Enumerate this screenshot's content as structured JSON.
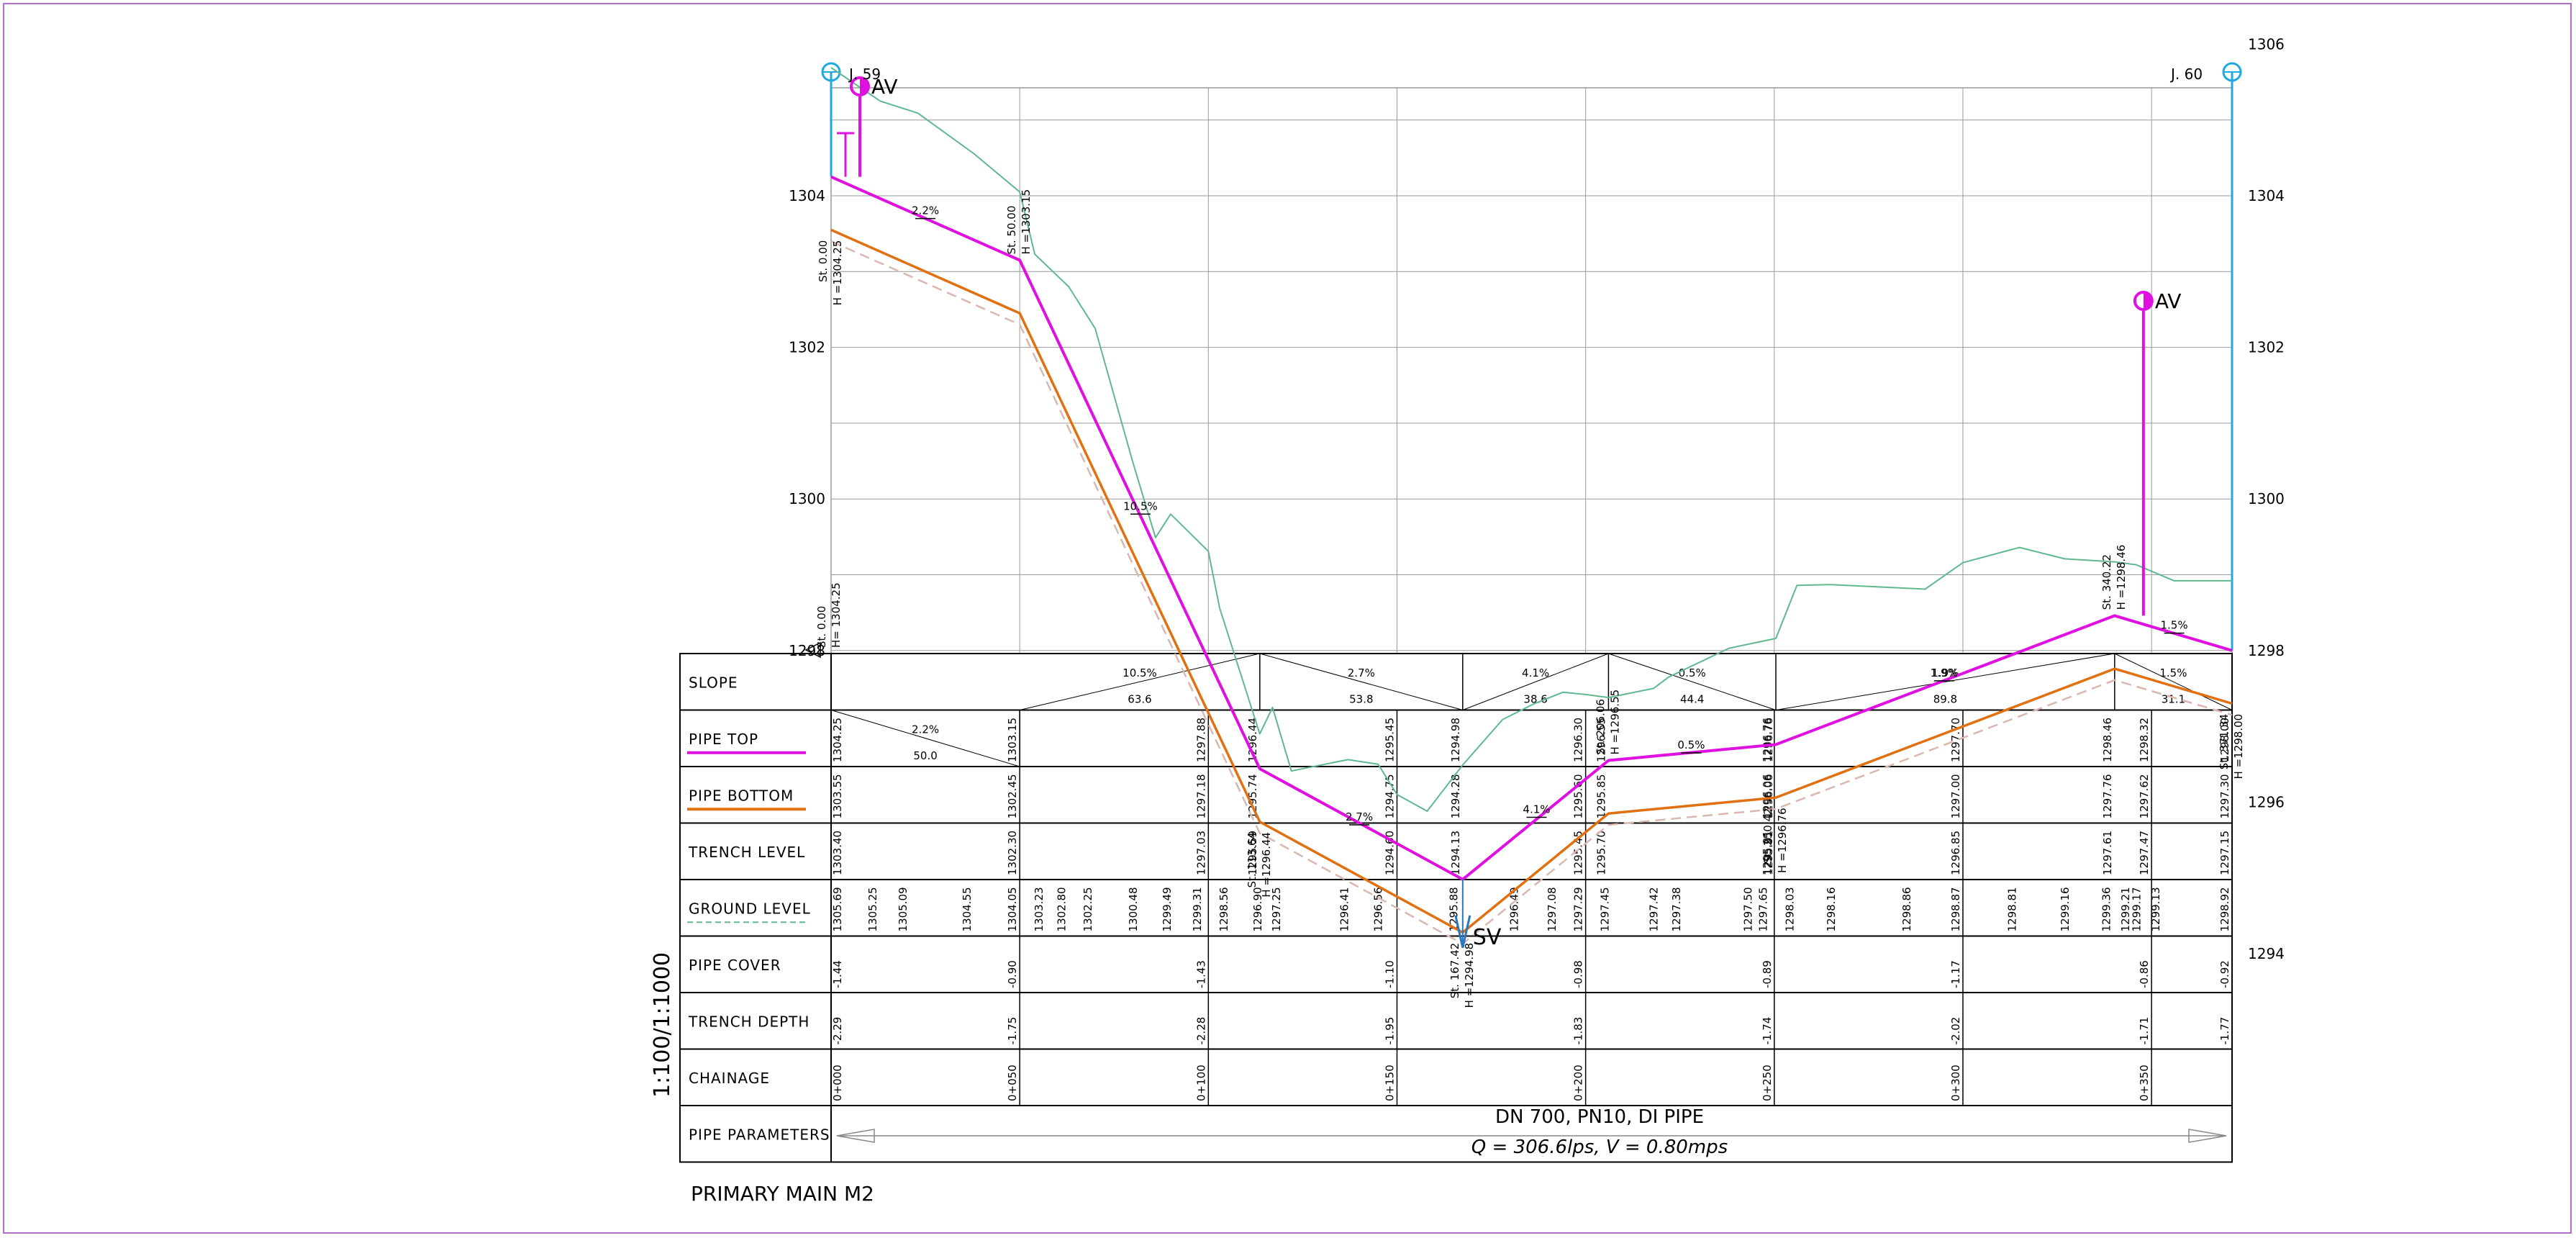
{
  "drawing": {
    "title": "PRIMARY MAIN M2",
    "scale": "1:100/1:1000",
    "start_node": "J. 59",
    "end_node": "J. 60",
    "pipe_spec": "DN 700, PN10, DI PIPE",
    "flow_text": "Q = 306.6lps, V = 0.80mps",
    "colors": {
      "pipe_top": "#e010e0",
      "pipe_bottom": "#e07010",
      "trench": "#d8b8b0",
      "ground": "#60b890",
      "node": "#20a8e0",
      "valve_sv": "#2878c0",
      "grid": "#9a9a9a"
    }
  },
  "row_labels": [
    "SLOPE",
    "PIPE TOP",
    "PIPE BOTTOM",
    "TRENCH LEVEL",
    "GROUND LEVEL",
    "PIPE COVER",
    "TRENCH DEPTH",
    "CHAINAGE",
    "PIPE PARAMETERS"
  ],
  "valves": [
    {
      "type": "AV",
      "label": "AV",
      "chainage": 0
    },
    {
      "type": "AV",
      "label": "AV",
      "chainage": 340.22
    },
    {
      "type": "SV",
      "label": "SV",
      "chainage": 167.42
    }
  ],
  "chart_data": {
    "type": "line",
    "ylim": [
      1292,
      1307
    ],
    "xlim": [
      0,
      371.34
    ],
    "yticks_left": [
      "1306",
      "1304",
      "1302",
      "1300",
      "1298",
      "1296",
      "1294",
      "1292"
    ],
    "yticks_right": [
      "1306",
      "1304",
      "1302",
      "1300",
      "1298",
      "1296",
      "1294"
    ],
    "series": [
      {
        "name": "PIPE TOP",
        "x": [
          0,
          50,
          113.64,
          167.42,
          206.06,
          250.42,
          340.22,
          371.34
        ],
        "y": [
          1304.25,
          1303.15,
          1296.44,
          1294.98,
          1296.55,
          1296.76,
          1298.46,
          1298.0
        ]
      },
      {
        "name": "PIPE BOTTOM",
        "x": [
          0,
          50,
          113.64,
          167.42,
          206.06,
          250.42,
          340.22,
          371.34
        ],
        "y": [
          1303.55,
          1302.45,
          1295.74,
          1294.28,
          1295.85,
          1296.06,
          1297.76,
          1297.3
        ]
      },
      {
        "name": "TRENCH LEVEL",
        "x": [
          0,
          50,
          113.64,
          167.42,
          206.06,
          250.42,
          340.22,
          371.34
        ],
        "y": [
          1303.4,
          1302.3,
          1295.59,
          1294.13,
          1295.7,
          1295.91,
          1297.61,
          1297.15
        ]
      },
      {
        "name": "GROUND LEVEL",
        "x": [
          0,
          13,
          23,
          38,
          50,
          54,
          63,
          70,
          80,
          86,
          90,
          100,
          103,
          113.64,
          117,
          122,
          137,
          145,
          150,
          158,
          167.42,
          178,
          186,
          194,
          200,
          206.06,
          218,
          222,
          238,
          250.42,
          256,
          265,
          290,
          300,
          315,
          327,
          340.22,
          346,
          356,
          371.34
        ],
        "y": [
          1305.69,
          1305.25,
          1305.09,
          1304.55,
          1304.05,
          1303.23,
          1302.8,
          1302.25,
          1300.48,
          1299.49,
          1299.8,
          1299.31,
          1298.56,
          1296.9,
          1297.25,
          1296.41,
          1296.56,
          1296.5,
          1296.1,
          1295.88,
          1296.49,
          1297.09,
          1297.29,
          1297.45,
          1297.42,
          1297.38,
          1297.5,
          1297.65,
          1298.03,
          1298.16,
          1298.86,
          1298.87,
          1298.81,
          1299.16,
          1299.36,
          1299.21,
          1299.17,
          1299.13,
          1298.92,
          1298.92
        ]
      }
    ],
    "station_labels": [
      {
        "st": "St. 0.00",
        "h": "H =1304.25",
        "x": 0,
        "y": 1304.25
      },
      {
        "st": "St. 50.00",
        "h": "H =1303.15",
        "x": 50,
        "y": 1303.15
      },
      {
        "st": "St. 113.64",
        "h": "H =1296.44",
        "x": 113.64,
        "y": 1296.44
      },
      {
        "st": "St. 167.42",
        "h": "H =1294.98",
        "x": 167.42,
        "y": 1294.98
      },
      {
        "st": "St. 206.06",
        "h": "H =1296.55",
        "x": 206.06,
        "y": 1296.55
      },
      {
        "st": "St. 250.42",
        "h": "H =1296.76",
        "x": 250.42,
        "y": 1296.76
      },
      {
        "st": "St. 340.22",
        "h": "H =1298.46",
        "x": 340.22,
        "y": 1298.46
      },
      {
        "st": "St. 371.34",
        "h": "H =1298.00",
        "x": 371.34,
        "y": 1298.0
      }
    ],
    "datum_label": {
      "st": "St. 0.00",
      "h": "H= 1304.25"
    },
    "slope_marks": [
      {
        "label": "2.2%",
        "x": 25,
        "y": 1303.7
      },
      {
        "label": "10.5%",
        "x": 82,
        "y": 1299.8
      },
      {
        "label": "2.7%",
        "x": 140,
        "y": 1295.7
      },
      {
        "label": "4.1%",
        "x": 187,
        "y": 1295.8
      },
      {
        "label": "0.5%",
        "x": 228,
        "y": 1296.65
      },
      {
        "label": "1.9%",
        "x": 295,
        "y": 1297.6
      },
      {
        "label": "1.5%",
        "x": 356,
        "y": 1298.23
      }
    ],
    "slope_segments": [
      {
        "slope": "2.2%",
        "length": "50.0",
        "x0": 0,
        "x1": 50
      },
      {
        "slope": "10.5%",
        "length": "63.6",
        "x0": 50,
        "x1": 113.64
      },
      {
        "slope": "2.7%",
        "length": "53.8",
        "x0": 113.64,
        "x1": 167.42
      },
      {
        "slope": "4.1%",
        "length": "38.6",
        "x0": 167.42,
        "x1": 206.06
      },
      {
        "slope": "0.5%",
        "length": "44.4",
        "x0": 206.06,
        "x1": 250.42
      },
      {
        "slope": "1.9%",
        "length": "89.8",
        "x0": 250.42,
        "x1": 340.22
      },
      {
        "slope": "1.5%",
        "length": "31.1",
        "x0": 340.22,
        "x1": 371.34
      }
    ],
    "table": {
      "pipe_top": [
        {
          "x": 0,
          "v": "1304.25"
        },
        {
          "x": 50,
          "v": "1303.15"
        },
        {
          "x": 100,
          "v": "1297.88"
        },
        {
          "x": 113.64,
          "v": "1296.44"
        },
        {
          "x": 150,
          "v": "1295.45"
        },
        {
          "x": 167.42,
          "v": "1294.98"
        },
        {
          "x": 200,
          "v": "1296.30"
        },
        {
          "x": 206.06,
          "v": "1296.55"
        },
        {
          "x": 250,
          "v": "1296.76"
        },
        {
          "x": 250.42,
          "v": "1296.76"
        },
        {
          "x": 300,
          "v": "1297.70"
        },
        {
          "x": 340.22,
          "v": "1298.46"
        },
        {
          "x": 350,
          "v": "1298.32"
        },
        {
          "x": 371.34,
          "v": "1298.00"
        }
      ],
      "pipe_bottom": [
        {
          "x": 0,
          "v": "1303.55"
        },
        {
          "x": 50,
          "v": "1302.45"
        },
        {
          "x": 100,
          "v": "1297.18"
        },
        {
          "x": 113.64,
          "v": "1295.74"
        },
        {
          "x": 150,
          "v": "1294.75"
        },
        {
          "x": 167.42,
          "v": "1294.28"
        },
        {
          "x": 200,
          "v": "1295.60"
        },
        {
          "x": 206.06,
          "v": "1295.85"
        },
        {
          "x": 250,
          "v": "1296.06"
        },
        {
          "x": 250.42,
          "v": "1296.06"
        },
        {
          "x": 300,
          "v": "1297.00"
        },
        {
          "x": 340.22,
          "v": "1297.76"
        },
        {
          "x": 350,
          "v": "1297.62"
        },
        {
          "x": 371.34,
          "v": "1297.30"
        }
      ],
      "trench_level": [
        {
          "x": 0,
          "v": "1303.40"
        },
        {
          "x": 50,
          "v": "1302.30"
        },
        {
          "x": 100,
          "v": "1297.03"
        },
        {
          "x": 113.64,
          "v": "1295.59"
        },
        {
          "x": 150,
          "v": "1294.60"
        },
        {
          "x": 167.42,
          "v": "1294.13"
        },
        {
          "x": 200,
          "v": "1295.45"
        },
        {
          "x": 206.06,
          "v": "1295.70"
        },
        {
          "x": 250,
          "v": "1295.91"
        },
        {
          "x": 250.42,
          "v": "1295.91"
        },
        {
          "x": 300,
          "v": "1296.85"
        },
        {
          "x": 340.22,
          "v": "1297.61"
        },
        {
          "x": 350,
          "v": "1297.47"
        },
        {
          "x": 371.34,
          "v": "1297.15"
        }
      ],
      "ground_level": [
        {
          "x": 0,
          "v": "1305.69"
        },
        {
          "x": 13,
          "v": "1305.25"
        },
        {
          "x": 21,
          "v": "1305.09"
        },
        {
          "x": 38,
          "v": "1304.55"
        },
        {
          "x": 50,
          "v": "1304.05"
        },
        {
          "x": 57,
          "v": "1303.23"
        },
        {
          "x": 63,
          "v": "1302.80"
        },
        {
          "x": 70,
          "v": "1302.25"
        },
        {
          "x": 82,
          "v": "1300.48"
        },
        {
          "x": 91,
          "v": "1299.49"
        },
        {
          "x": 99,
          "v": "1299.31"
        },
        {
          "x": 106,
          "v": "1298.56"
        },
        {
          "x": 115,
          "v": "1296.90"
        },
        {
          "x": 120,
          "v": "1297.25"
        },
        {
          "x": 138,
          "v": "1296.41"
        },
        {
          "x": 147,
          "v": "1296.56"
        },
        {
          "x": 167,
          "v": "1295.88"
        },
        {
          "x": 183,
          "v": "1296.49"
        },
        {
          "x": 193,
          "v": "1297.08"
        },
        {
          "x": 200,
          "v": "1297.29"
        },
        {
          "x": 207,
          "v": "1297.45"
        },
        {
          "x": 220,
          "v": "1297.42"
        },
        {
          "x": 226,
          "v": "1297.38"
        },
        {
          "x": 245,
          "v": "1297.50"
        },
        {
          "x": 249,
          "v": "1297.65"
        },
        {
          "x": 256,
          "v": "1298.03"
        },
        {
          "x": 267,
          "v": "1298.16"
        },
        {
          "x": 287,
          "v": "1298.86"
        },
        {
          "x": 300,
          "v": "1298.87"
        },
        {
          "x": 315,
          "v": "1298.81"
        },
        {
          "x": 329,
          "v": "1299.16"
        },
        {
          "x": 340,
          "v": "1299.36"
        },
        {
          "x": 345,
          "v": "1299.21"
        },
        {
          "x": 348,
          "v": "1299.17"
        },
        {
          "x": 353,
          "v": "1299.13"
        },
        {
          "x": 371.34,
          "v": "1298.92"
        }
      ],
      "pipe_cover": [
        {
          "x": 0,
          "v": "-1.44"
        },
        {
          "x": 50,
          "v": "-0.90"
        },
        {
          "x": 100,
          "v": "-1.43"
        },
        {
          "x": 150,
          "v": "-1.10"
        },
        {
          "x": 200,
          "v": "-0.98"
        },
        {
          "x": 250,
          "v": "-0.89"
        },
        {
          "x": 300,
          "v": "-1.17"
        },
        {
          "x": 350,
          "v": "-0.86"
        },
        {
          "x": 371.34,
          "v": "-0.92"
        }
      ],
      "trench_depth": [
        {
          "x": 0,
          "v": "-2.29"
        },
        {
          "x": 50,
          "v": "-1.75"
        },
        {
          "x": 100,
          "v": "-2.28"
        },
        {
          "x": 150,
          "v": "-1.95"
        },
        {
          "x": 200,
          "v": "-1.83"
        },
        {
          "x": 250,
          "v": "-1.74"
        },
        {
          "x": 300,
          "v": "-2.02"
        },
        {
          "x": 350,
          "v": "-1.71"
        },
        {
          "x": 371.34,
          "v": "-1.77"
        }
      ],
      "chainage": [
        {
          "x": 0,
          "v": "0+000"
        },
        {
          "x": 50,
          "v": "0+050"
        },
        {
          "x": 100,
          "v": "0+100"
        },
        {
          "x": 150,
          "v": "0+150"
        },
        {
          "x": 200,
          "v": "0+200"
        },
        {
          "x": 250,
          "v": "0+250"
        },
        {
          "x": 300,
          "v": "0+300"
        },
        {
          "x": 350,
          "v": "0+350"
        }
      ]
    }
  }
}
